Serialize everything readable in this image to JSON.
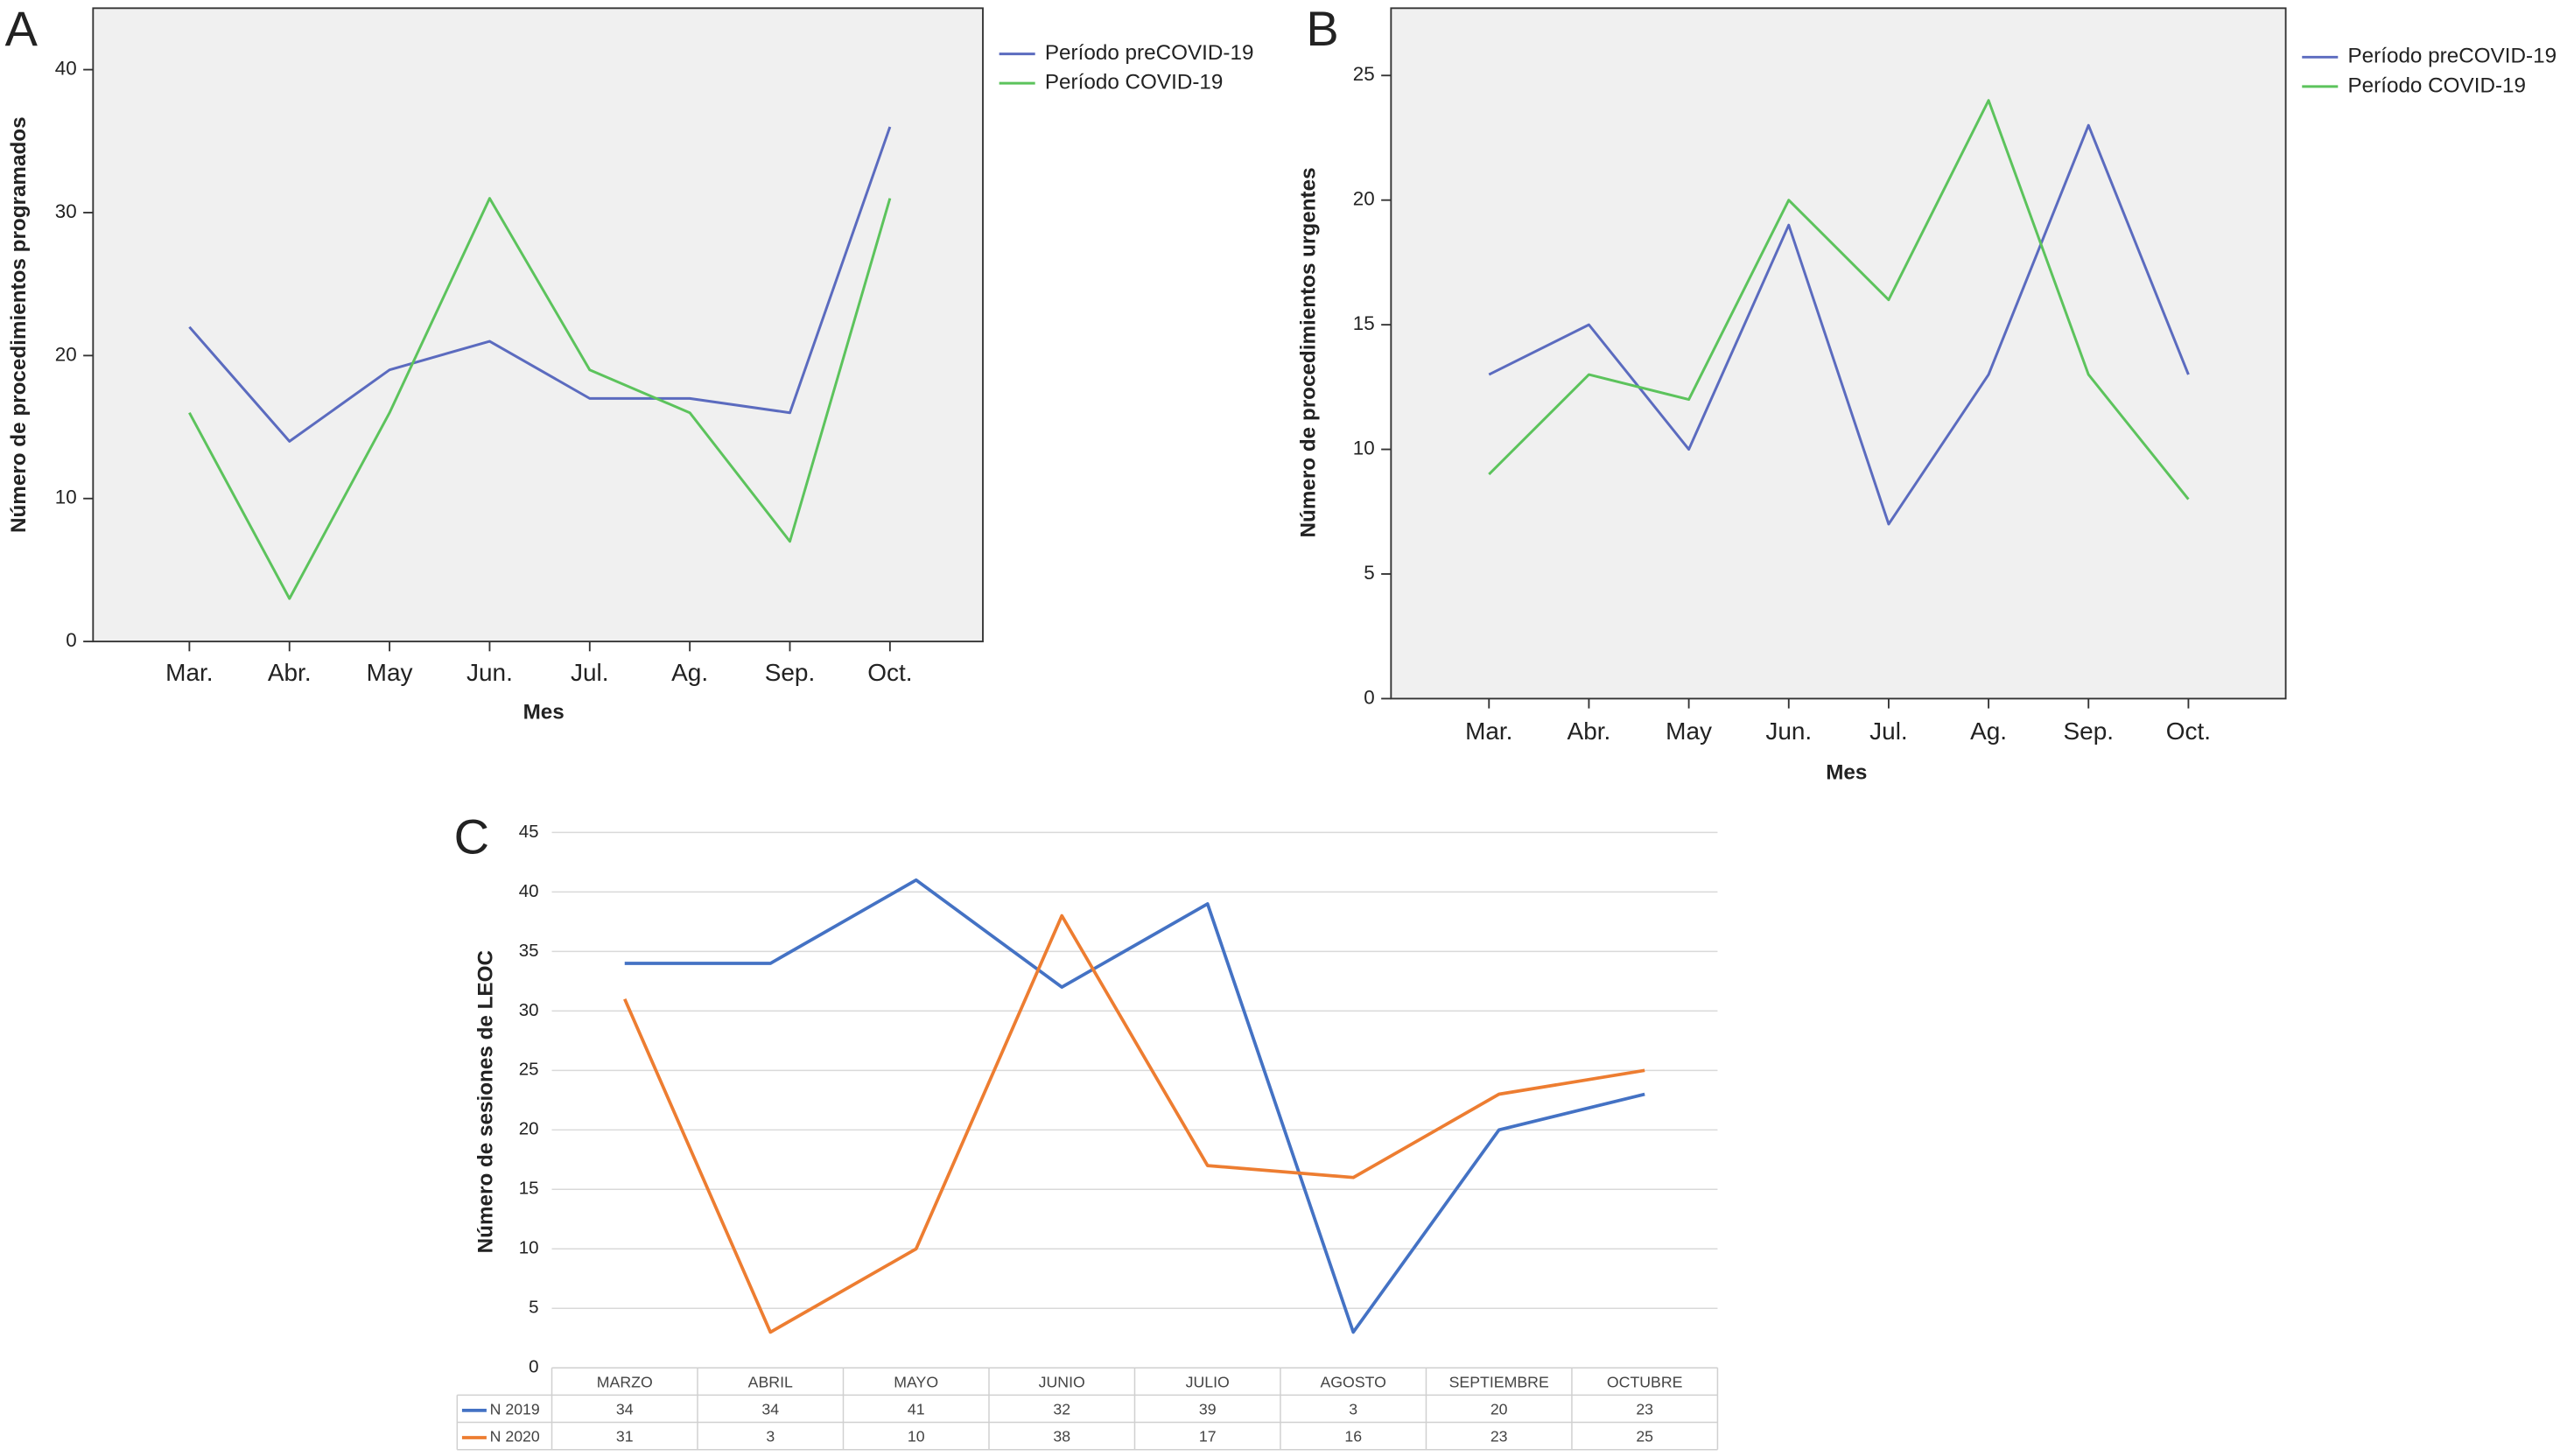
{
  "chart_data": [
    {
      "type": "line",
      "panel_label": "A",
      "x_label": "Mes",
      "y_label": "Número de procedimientos programados",
      "categories": [
        "Mar.",
        "Abr.",
        "May",
        "Jun.",
        "Jul.",
        "Ag.",
        "Sep.",
        "Oct."
      ],
      "series": [
        {
          "name": "Período preCOVID-19",
          "color": "#5b6bbf",
          "values": [
            22,
            14,
            19,
            21,
            17,
            17,
            16,
            36
          ]
        },
        {
          "name": "Período COVID-19",
          "color": "#5cc35c",
          "values": [
            16,
            3,
            16,
            31,
            19,
            16,
            7,
            31
          ]
        }
      ],
      "ylim": [
        0,
        44.3
      ],
      "yticks": [
        0,
        10,
        20,
        30,
        40
      ],
      "grid": false,
      "legend": "outside-right"
    },
    {
      "type": "line",
      "panel_label": "B",
      "x_label": "Mes",
      "y_label": "Número de procedimientos urgentes",
      "categories": [
        "Mar.",
        "Abr.",
        "May",
        "Jun.",
        "Jul.",
        "Ag.",
        "Sep.",
        "Oct."
      ],
      "series": [
        {
          "name": "Período preCOVID-19",
          "color": "#5b6bbf",
          "values": [
            13,
            15,
            10,
            19,
            7,
            13,
            23,
            13
          ]
        },
        {
          "name": "Período COVID-19",
          "color": "#5cc35c",
          "values": [
            9,
            13,
            12,
            20,
            16,
            24,
            13,
            8
          ]
        }
      ],
      "ylim": [
        0,
        27.7
      ],
      "yticks": [
        0,
        5,
        10,
        15,
        20,
        25
      ],
      "grid": false,
      "legend": "outside-right"
    },
    {
      "type": "line",
      "panel_label": "C",
      "y_label": "Número de sesiones de LEOC",
      "categories": [
        "MARZO",
        "ABRIL",
        "MAYO",
        "JUNIO",
        "JULIO",
        "AGOSTO",
        "SEPTIEMBRE",
        "OCTUBRE"
      ],
      "series": [
        {
          "name": "N 2019",
          "color": "#4472c4",
          "values": [
            34,
            34,
            41,
            32,
            39,
            3,
            20,
            23
          ]
        },
        {
          "name": "N 2020",
          "color": "#ed7d31",
          "values": [
            31,
            3,
            10,
            38,
            17,
            16,
            23,
            25
          ]
        }
      ],
      "ylim": [
        0,
        45
      ],
      "yticks": [
        0,
        5,
        10,
        15,
        20,
        25,
        30,
        35,
        40,
        45
      ],
      "grid": true,
      "legend": "data-table"
    }
  ]
}
